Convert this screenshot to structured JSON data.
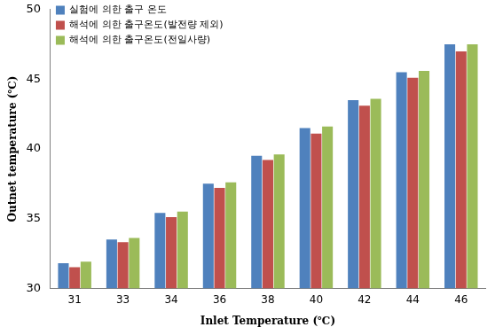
{
  "chart_data": {
    "type": "bar",
    "categories": [
      "31",
      "33",
      "34",
      "36",
      "38",
      "40",
      "42",
      "44",
      "46"
    ],
    "x_label": "Inlet Temperature (℃)",
    "y_label": "Outnet temperature (℃)",
    "series": [
      {
        "name": "실험에 의한 출구 온도",
        "color": "#4f81bd",
        "values": [
          31.8,
          33.5,
          35.4,
          37.5,
          39.5,
          41.5,
          43.5,
          45.5,
          47.5
        ]
      },
      {
        "name": "해석에 의한 출구온도(발전량 제외)",
        "color": "#c0504d",
        "values": [
          31.5,
          33.3,
          35.1,
          37.2,
          39.2,
          41.1,
          43.1,
          45.1,
          47.0
        ]
      },
      {
        "name": "해석에 의한 출구온도(전일사량)",
        "color": "#9bbb59",
        "values": [
          31.9,
          33.6,
          35.5,
          37.6,
          39.6,
          41.6,
          43.6,
          45.6,
          47.5
        ]
      }
    ],
    "ylim": [
      30,
      50
    ],
    "yticks": [
      30,
      35,
      40,
      45,
      50
    ],
    "grid": false,
    "legend": "upper left"
  }
}
